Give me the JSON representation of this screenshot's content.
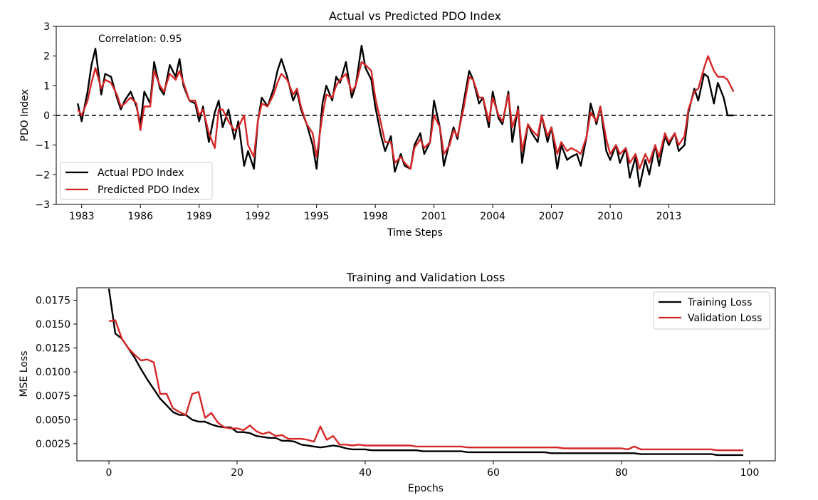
{
  "chart_data": [
    {
      "type": "line",
      "title": "Actual vs Predicted PDO Index",
      "xlabel": "Time Steps",
      "ylabel": "PDO Index",
      "annotation": "Correlation: 0.95",
      "xlim": [
        1981.7,
        2018.4
      ],
      "ylim": [
        -3,
        3
      ],
      "xticks": [
        "1983",
        "1986",
        "1989",
        "1992",
        "1995",
        "1998",
        "2001",
        "2004",
        "2007",
        "2010",
        "2013"
      ],
      "yticks": [
        "−3",
        "−2",
        "−1",
        "0",
        "1",
        "2",
        "3"
      ],
      "reference_line": 0,
      "legend_position": "lower-left",
      "x": [
        1982.8,
        1983.0,
        1983.3,
        1983.5,
        1983.7,
        1984.0,
        1984.2,
        1984.5,
        1984.8,
        1985.0,
        1985.2,
        1985.5,
        1985.8,
        1986.0,
        1986.2,
        1986.5,
        1986.7,
        1987.0,
        1987.2,
        1987.5,
        1987.8,
        1988.0,
        1988.2,
        1988.5,
        1988.8,
        1989.0,
        1989.2,
        1989.5,
        1989.8,
        1990.0,
        1990.2,
        1990.5,
        1990.8,
        1991.0,
        1991.3,
        1991.5,
        1991.8,
        1992.0,
        1992.2,
        1992.5,
        1992.8,
        1993.0,
        1993.2,
        1993.5,
        1993.8,
        1994.0,
        1994.2,
        1994.5,
        1994.8,
        1995.0,
        1995.3,
        1995.5,
        1995.8,
        1996.0,
        1996.2,
        1996.5,
        1996.8,
        1997.0,
        1997.3,
        1997.5,
        1997.8,
        1998.0,
        1998.3,
        1998.5,
        1998.8,
        1999.0,
        1999.3,
        1999.5,
        1999.8,
        2000.0,
        2000.3,
        2000.5,
        2000.8,
        2001.0,
        2001.3,
        2001.5,
        2001.8,
        2002.0,
        2002.2,
        2002.5,
        2002.8,
        2003.0,
        2003.3,
        2003.5,
        2003.8,
        2004.0,
        2004.3,
        2004.5,
        2004.8,
        2005.0,
        2005.3,
        2005.5,
        2005.8,
        2006.0,
        2006.3,
        2006.5,
        2006.8,
        2007.0,
        2007.3,
        2007.5,
        2007.8,
        2008.0,
        2008.3,
        2008.5,
        2008.8,
        2009.0,
        2009.3,
        2009.5,
        2009.8,
        2010.0,
        2010.3,
        2010.5,
        2010.8,
        2011.0,
        2011.3,
        2011.5,
        2011.8,
        2012.0,
        2012.3,
        2012.5,
        2012.8,
        2013.0,
        2013.3,
        2013.5,
        2013.8,
        2014.0,
        2014.3,
        2014.5,
        2014.8,
        2015.0,
        2015.3,
        2015.5,
        2015.8,
        2016.0,
        2016.3
      ],
      "series": [
        {
          "name": "Actual PDO Index",
          "color": "#000000",
          "values": [
            0.4,
            -0.2,
            0.8,
            1.7,
            2.25,
            0.7,
            1.4,
            1.3,
            0.6,
            0.2,
            0.5,
            0.8,
            0.3,
            -0.3,
            0.8,
            0.4,
            1.8,
            0.9,
            0.7,
            1.7,
            1.3,
            1.9,
            1.0,
            0.5,
            0.4,
            -0.2,
            0.3,
            -0.9,
            0.1,
            0.5,
            -0.4,
            0.2,
            -0.8,
            -0.2,
            -1.7,
            -1.2,
            -1.8,
            -0.2,
            0.6,
            0.3,
            0.9,
            1.5,
            1.9,
            1.3,
            0.5,
            0.8,
            0.2,
            -0.3,
            -1.0,
            -1.8,
            0.4,
            1.0,
            0.5,
            1.3,
            1.1,
            1.8,
            0.6,
            1.0,
            2.35,
            1.6,
            1.2,
            0.3,
            -0.7,
            -1.2,
            -0.7,
            -1.9,
            -1.3,
            -1.7,
            -1.8,
            -1.0,
            -0.6,
            -1.3,
            -0.9,
            0.5,
            -0.4,
            -1.7,
            -0.9,
            -0.4,
            -0.8,
            0.4,
            1.5,
            1.2,
            0.4,
            0.6,
            -0.4,
            0.8,
            -0.1,
            -0.3,
            0.8,
            -0.9,
            0.3,
            -1.6,
            -0.3,
            -0.6,
            -0.9,
            0.0,
            -0.9,
            -0.4,
            -1.8,
            -1.0,
            -1.5,
            -1.4,
            -1.3,
            -1.7,
            -0.7,
            0.4,
            -0.3,
            0.3,
            -1.2,
            -1.5,
            -1.0,
            -1.6,
            -1.1,
            -2.1,
            -1.4,
            -2.4,
            -1.5,
            -2.0,
            -1.0,
            -1.7,
            -0.7,
            -1.0,
            -0.6,
            -1.2,
            -1.0,
            0.1,
            0.9,
            0.5,
            1.4,
            1.3,
            0.4,
            1.1,
            0.6,
            0.0,
            0.0
          ]
        },
        {
          "name": "Predicted PDO Index",
          "color": "#d62728",
          "values": [
            0.2,
            0.0,
            0.5,
            1.1,
            1.6,
            0.9,
            1.2,
            1.1,
            0.7,
            0.3,
            0.4,
            0.6,
            0.4,
            -0.5,
            0.3,
            0.3,
            1.5,
            1.0,
            0.8,
            1.4,
            1.2,
            1.5,
            1.1,
            0.5,
            0.5,
            0.0,
            0.2,
            -0.6,
            -1.1,
            0.2,
            0.2,
            -0.2,
            -0.5,
            -0.4,
            0.0,
            -1.0,
            -1.4,
            -0.2,
            0.4,
            0.3,
            0.7,
            1.1,
            1.4,
            1.2,
            0.7,
            0.9,
            0.3,
            -0.3,
            -0.6,
            -1.4,
            0.0,
            0.7,
            0.6,
            1.0,
            1.2,
            1.4,
            0.8,
            1.0,
            1.8,
            1.7,
            1.5,
            0.6,
            -0.3,
            -0.9,
            -0.9,
            -1.6,
            -1.4,
            -1.6,
            -1.8,
            -1.1,
            -0.8,
            -1.1,
            -0.9,
            0.0,
            -0.4,
            -1.3,
            -1.0,
            -0.5,
            -0.7,
            0.2,
            1.3,
            1.2,
            0.6,
            0.6,
            -0.2,
            0.6,
            0.0,
            -0.2,
            0.7,
            -0.4,
            0.2,
            -1.2,
            -0.3,
            -0.5,
            -0.7,
            0.0,
            -0.7,
            -0.4,
            -1.3,
            -0.9,
            -1.2,
            -1.1,
            -1.2,
            -1.3,
            -0.7,
            0.1,
            -0.2,
            0.3,
            -0.8,
            -1.3,
            -1.0,
            -1.3,
            -1.1,
            -1.6,
            -1.3,
            -1.8,
            -1.3,
            -1.6,
            -1.0,
            -1.4,
            -0.6,
            -0.9,
            -0.6,
            -1.0,
            -0.7,
            0.2,
            0.8,
            0.9,
            1.6,
            2.0,
            1.5,
            1.3,
            1.3,
            1.2,
            0.8
          ]
        }
      ]
    },
    {
      "type": "line",
      "title": "Training and Validation Loss",
      "xlabel": "Epochs",
      "ylabel": "MSE Loss",
      "xlim": [
        -5,
        104
      ],
      "ylim": [
        0.0007,
        0.0188
      ],
      "xticks": [
        "0",
        "20",
        "40",
        "60",
        "80",
        "100"
      ],
      "yticks": [
        "0.0025",
        "0.0050",
        "0.0075",
        "0.0100",
        "0.0125",
        "0.0150",
        "0.0175"
      ],
      "legend_position": "upper-right",
      "x": [
        0,
        1,
        2,
        3,
        4,
        5,
        6,
        7,
        8,
        9,
        10,
        11,
        12,
        13,
        14,
        15,
        16,
        17,
        18,
        19,
        20,
        21,
        22,
        23,
        24,
        25,
        26,
        27,
        28,
        29,
        30,
        31,
        32,
        33,
        34,
        35,
        36,
        37,
        38,
        39,
        40,
        41,
        42,
        43,
        44,
        45,
        46,
        47,
        48,
        49,
        50,
        51,
        52,
        53,
        54,
        55,
        56,
        57,
        58,
        59,
        60,
        61,
        62,
        63,
        64,
        65,
        66,
        67,
        68,
        69,
        70,
        71,
        72,
        73,
        74,
        75,
        76,
        77,
        78,
        79,
        80,
        81,
        82,
        83,
        84,
        85,
        86,
        87,
        88,
        89,
        90,
        91,
        92,
        93,
        94,
        95,
        96,
        97,
        98,
        99
      ],
      "series": [
        {
          "name": "Training Loss",
          "color": "#000000",
          "values": [
            0.0187,
            0.014,
            0.0135,
            0.0125,
            0.0115,
            0.0103,
            0.0092,
            0.0082,
            0.0072,
            0.0065,
            0.0058,
            0.0055,
            0.0055,
            0.005,
            0.0048,
            0.0048,
            0.0045,
            0.0043,
            0.0042,
            0.0042,
            0.0037,
            0.0037,
            0.0036,
            0.0033,
            0.0032,
            0.0031,
            0.0031,
            0.0028,
            0.0028,
            0.0027,
            0.0024,
            0.0023,
            0.0022,
            0.0021,
            0.0022,
            0.0023,
            0.0022,
            0.002,
            0.0019,
            0.0019,
            0.0019,
            0.0018,
            0.0018,
            0.0018,
            0.0018,
            0.0018,
            0.0018,
            0.0018,
            0.0018,
            0.0017,
            0.0017,
            0.0017,
            0.0017,
            0.0017,
            0.0017,
            0.0017,
            0.0016,
            0.0016,
            0.0016,
            0.0016,
            0.0016,
            0.0016,
            0.0016,
            0.0016,
            0.0016,
            0.0016,
            0.0016,
            0.0016,
            0.0016,
            0.0015,
            0.0015,
            0.0015,
            0.0015,
            0.0015,
            0.0015,
            0.0015,
            0.0015,
            0.0015,
            0.0015,
            0.0015,
            0.0015,
            0.0015,
            0.0015,
            0.0014,
            0.0014,
            0.0014,
            0.0014,
            0.0014,
            0.0014,
            0.0014,
            0.0014,
            0.0014,
            0.0014,
            0.0014,
            0.0014,
            0.0013,
            0.0013,
            0.0013,
            0.0013,
            0.0013
          ]
        },
        {
          "name": "Validation Loss",
          "color": "#d62728",
          "values": [
            0.0153,
            0.0154,
            0.0135,
            0.0125,
            0.0118,
            0.0112,
            0.0113,
            0.011,
            0.0077,
            0.0077,
            0.0062,
            0.0058,
            0.0055,
            0.0077,
            0.0079,
            0.0052,
            0.0057,
            0.0047,
            0.0042,
            0.0041,
            0.0041,
            0.0039,
            0.0044,
            0.0038,
            0.0035,
            0.0037,
            0.0033,
            0.0034,
            0.003,
            0.003,
            0.003,
            0.0029,
            0.0027,
            0.0043,
            0.0029,
            0.0033,
            0.0024,
            0.0024,
            0.0023,
            0.0024,
            0.0023,
            0.0023,
            0.0023,
            0.0023,
            0.0023,
            0.0023,
            0.0023,
            0.0023,
            0.0022,
            0.0022,
            0.0022,
            0.0022,
            0.0022,
            0.0022,
            0.0022,
            0.0022,
            0.0021,
            0.0021,
            0.0021,
            0.0021,
            0.0021,
            0.0021,
            0.0021,
            0.0021,
            0.0021,
            0.0021,
            0.0021,
            0.0021,
            0.0021,
            0.0021,
            0.0021,
            0.002,
            0.002,
            0.002,
            0.002,
            0.002,
            0.002,
            0.002,
            0.002,
            0.002,
            0.002,
            0.0019,
            0.0022,
            0.0019,
            0.0019,
            0.0019,
            0.0019,
            0.0019,
            0.0019,
            0.0019,
            0.0019,
            0.0019,
            0.0019,
            0.0019,
            0.0019,
            0.0018,
            0.0018,
            0.0018,
            0.0018,
            0.0018
          ]
        }
      ]
    }
  ]
}
